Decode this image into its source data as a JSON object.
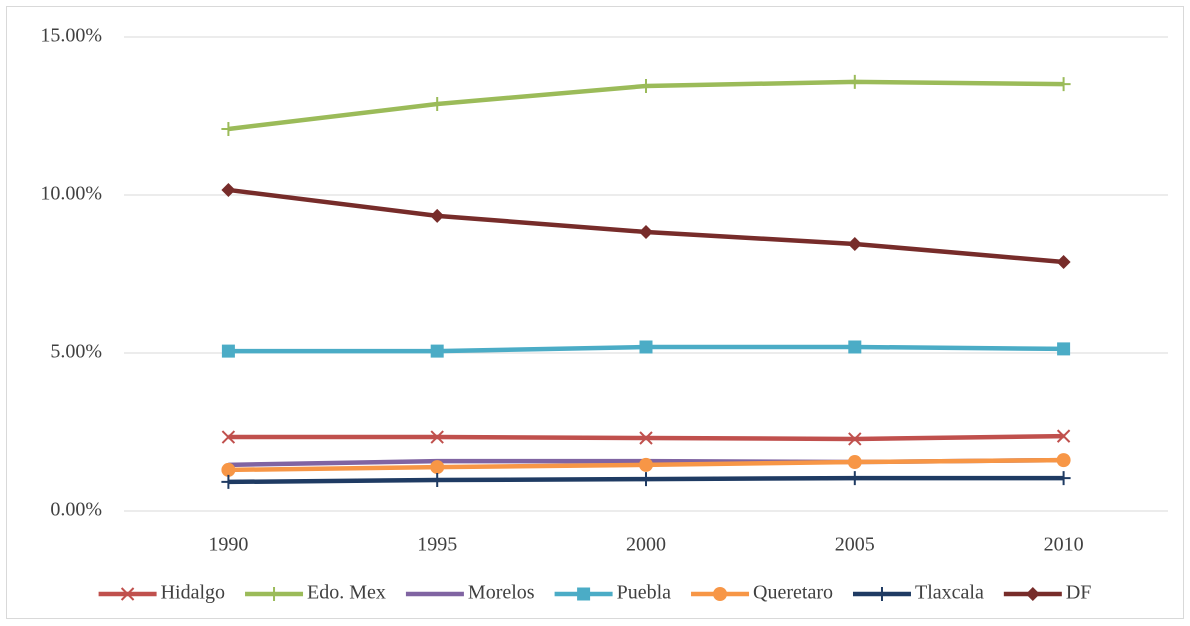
{
  "chart_data": {
    "type": "line",
    "categories": [
      "1990",
      "1995",
      "2000",
      "2005",
      "2010"
    ],
    "series": [
      {
        "name": "Hidalgo",
        "color": "#c0504d",
        "marker": "x",
        "values": [
          2.34,
          2.34,
          2.31,
          2.28,
          2.37
        ]
      },
      {
        "name": "Edo. Mex",
        "color": "#9bbb59",
        "marker": "plus",
        "values": [
          12.09,
          12.88,
          13.45,
          13.58,
          13.51
        ]
      },
      {
        "name": "Morelos",
        "color": "#8064a2",
        "marker": "none",
        "values": [
          1.46,
          1.58,
          1.58,
          1.55,
          1.61
        ]
      },
      {
        "name": "Puebla",
        "color": "#4bacc6",
        "marker": "square",
        "values": [
          5.06,
          5.06,
          5.19,
          5.19,
          5.13
        ]
      },
      {
        "name": "Queretaro",
        "color": "#f79646",
        "marker": "circle",
        "values": [
          1.3,
          1.39,
          1.46,
          1.55,
          1.61
        ]
      },
      {
        "name": "Tlaxcala",
        "color": "#1f3b63",
        "marker": "plus",
        "values": [
          0.92,
          0.98,
          1.01,
          1.04,
          1.04
        ]
      },
      {
        "name": "DF",
        "color": "#772c2a",
        "marker": "diamond",
        "values": [
          10.16,
          9.34,
          8.83,
          8.45,
          7.88
        ]
      }
    ],
    "ylim": [
      0,
      15
    ],
    "yticks": [
      {
        "value": 0,
        "label": "0.00%"
      },
      {
        "value": 5,
        "label": "5.00%"
      },
      {
        "value": 10,
        "label": "10.00%"
      },
      {
        "value": 15,
        "label": "15.00%"
      }
    ],
    "grid": true,
    "legend": "bottom"
  }
}
